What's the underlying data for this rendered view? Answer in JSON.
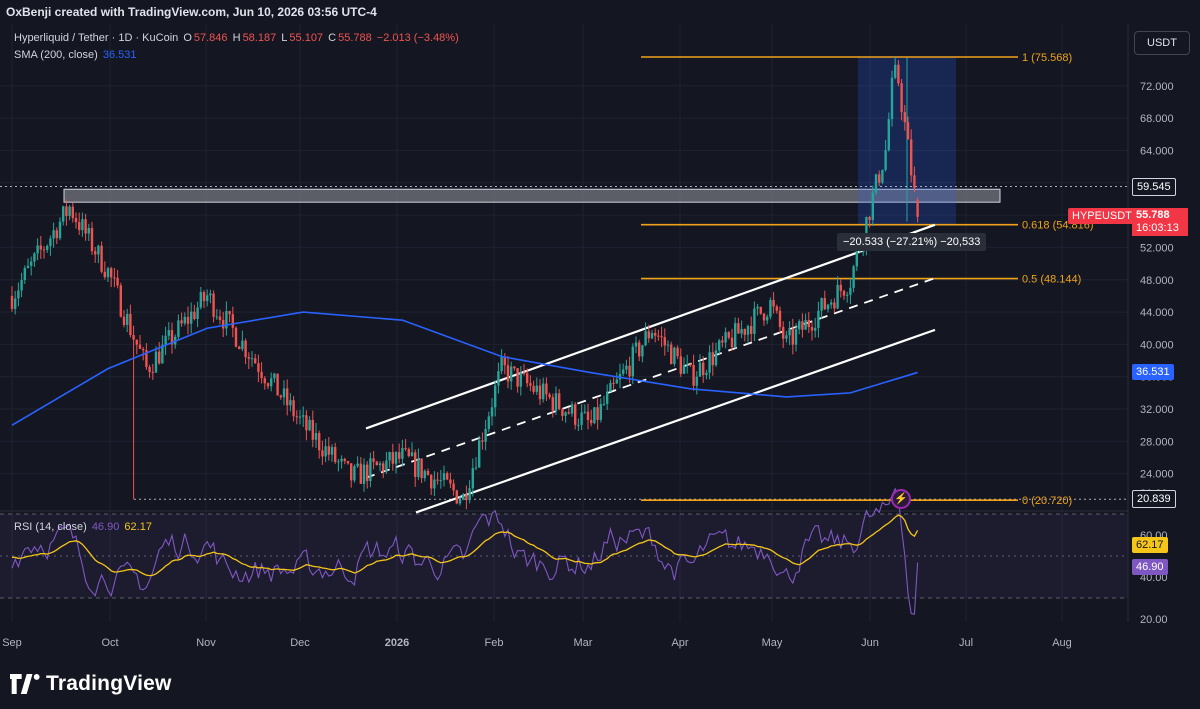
{
  "header": {
    "attribution": "OxBenji created with TradingView.com, Jun 10, 2026 03:56 UTC-4"
  },
  "legend": {
    "symbol": "Hyperliquid / Tether · 1D · KuCoin",
    "o_label": "O",
    "o_value": "57.846",
    "h_label": "H",
    "h_value": "58.187",
    "l_label": "L",
    "l_value": "55.107",
    "c_label": "C",
    "c_value": "55.788",
    "change": "−2.013 (−3.48%)",
    "sma_label": "SMA (200, close)",
    "sma_value": "36.531"
  },
  "currency_button": "USDT",
  "price_scale": {
    "ticks": [
      "72.000",
      "68.000",
      "64.000",
      "60.000",
      "56.000",
      "52.000",
      "48.000",
      "44.000",
      "40.000",
      "36.000",
      "32.000",
      "28.000",
      "24.000"
    ],
    "level_59545": "59.545",
    "level_20839": "20.839",
    "sma_tag": "36.531",
    "last_symbol": "HYPEUSDT",
    "last_price": "55.788",
    "countdown": "16:03:13"
  },
  "fib": {
    "level_1": "1 (75.568)",
    "level_0618": "0.618 (54.816)",
    "level_05": "0.5 (48.144)",
    "level_0": "0 (20.720)"
  },
  "measure": {
    "label": "−20.533 (−27.21%) −20,533"
  },
  "rsi": {
    "label": "RSI (14, close)",
    "rsi_value": "46.90",
    "ma_value": "62.17",
    "ticks": [
      "80.00",
      "60.00",
      "40.00",
      "20.00"
    ]
  },
  "time_axis": [
    "Sep",
    "Oct",
    "Nov",
    "Dec",
    "2026",
    "Feb",
    "Mar",
    "Apr",
    "May",
    "Jun",
    "Jul",
    "Aug"
  ],
  "footer": {
    "brand": "TradingView"
  },
  "colors": {
    "bg": "#141722",
    "up": "#26a69a",
    "down": "#ef5350",
    "fib": "#f0a21b",
    "sma": "#2962ff",
    "rsi": "#7e57c2",
    "rsi_ma": "#f5c518",
    "channel": "#ffffff"
  },
  "chart_data": [
    {
      "type": "candlestick",
      "symbol": "HYPEUSDT",
      "timeframe": "1D",
      "ylim": [
        20.0,
        76.0
      ],
      "x_ticks": [
        "Sep",
        "Oct",
        "Nov",
        "Dec",
        "2026",
        "Feb",
        "Mar",
        "Apr",
        "May",
        "Jun",
        "Jul",
        "Aug"
      ],
      "series": [
        {
          "name": "Hyperliquid / Tether",
          "approx_close_path": [
            {
              "x": "Sep",
              "y": 46
            },
            {
              "x": "Sep 18",
              "y": 57
            },
            {
              "x": "Oct",
              "y": 49
            },
            {
              "x": "Oct 12",
              "y": 37
            },
            {
              "x": "Nov",
              "y": 46
            },
            {
              "x": "Nov 15",
              "y": 38
            },
            {
              "x": "Dec",
              "y": 30
            },
            {
              "x": "Dec 15",
              "y": 23.5
            },
            {
              "x": "2026",
              "y": 26
            },
            {
              "x": "Jan 20",
              "y": 21
            },
            {
              "x": "Feb",
              "y": 37
            },
            {
              "x": "Mar",
              "y": 30
            },
            {
              "x": "Mar 20",
              "y": 42
            },
            {
              "x": "Apr",
              "y": 36
            },
            {
              "x": "Apr 25",
              "y": 45
            },
            {
              "x": "May",
              "y": 40
            },
            {
              "x": "May 20",
              "y": 48
            },
            {
              "x": "May 31",
              "y": 64
            },
            {
              "x": "Jun 3",
              "y": 75.5
            },
            {
              "x": "Jun 10",
              "y": 55.788
            }
          ]
        },
        {
          "name": "SMA (200, close)",
          "approx_path": [
            {
              "x": "Sep",
              "y": 30
            },
            {
              "x": "Oct",
              "y": 37
            },
            {
              "x": "Nov",
              "y": 42
            },
            {
              "x": "Dec",
              "y": 44
            },
            {
              "x": "2026",
              "y": 43
            },
            {
              "x": "Feb",
              "y": 38.5
            },
            {
              "x": "Mar",
              "y": 36.5
            },
            {
              "x": "Apr",
              "y": 34.5
            },
            {
              "x": "May",
              "y": 33.5
            },
            {
              "x": "Jun 10",
              "y": 36.531
            }
          ]
        }
      ],
      "horizontal_levels": [
        {
          "label": "1 (75.568)",
          "value": 75.568
        },
        {
          "label": "0.618 (54.816)",
          "value": 54.816
        },
        {
          "label": "0.5 (48.144)",
          "value": 48.144
        },
        {
          "label": "0 (20.720)",
          "value": 20.72
        }
      ],
      "dotted_levels": [
        59.545,
        20.839
      ],
      "supply_zone": [
        57.6,
        59.2
      ]
    },
    {
      "type": "line",
      "name": "RSI (14, close)",
      "ylim": [
        10,
        90
      ],
      "series": [
        {
          "name": "RSI",
          "last": 46.9
        },
        {
          "name": "RSI MA",
          "last": 62.17
        }
      ],
      "bands": [
        70,
        50,
        30
      ]
    }
  ]
}
